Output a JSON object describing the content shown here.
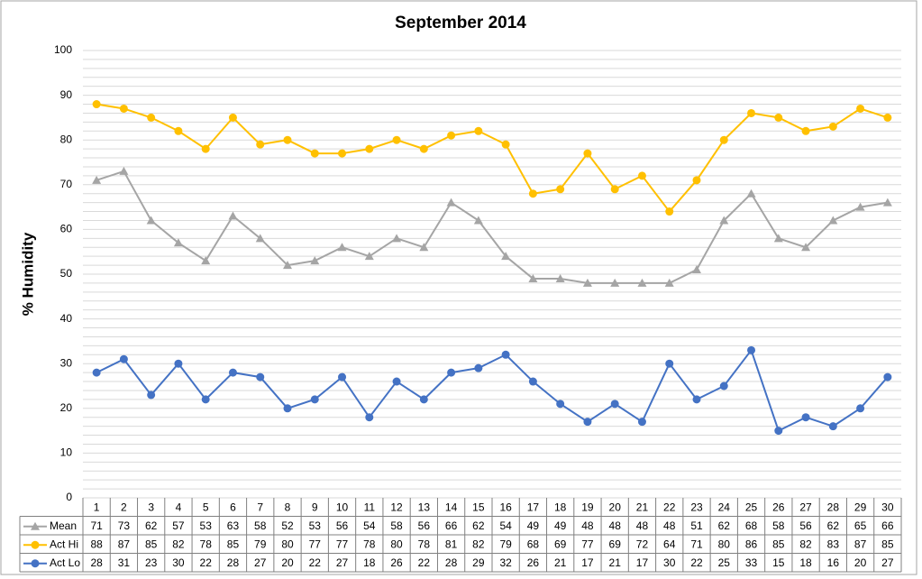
{
  "chart_data": {
    "type": "line",
    "title": "September 2014",
    "y_label": "% Humidity",
    "categories": [
      "1",
      "2",
      "3",
      "4",
      "5",
      "6",
      "7",
      "8",
      "9",
      "10",
      "11",
      "12",
      "13",
      "14",
      "15",
      "16",
      "17",
      "18",
      "19",
      "20",
      "21",
      "22",
      "23",
      "24",
      "25",
      "26",
      "27",
      "28",
      "29",
      "30"
    ],
    "series": [
      {
        "name": "Mean",
        "color": "#a5a5a5",
        "marker": "triangle",
        "values": [
          71,
          73,
          62,
          57,
          53,
          63,
          58,
          52,
          53,
          56,
          54,
          58,
          56,
          66,
          62,
          54,
          49,
          49,
          48,
          48,
          48,
          48,
          51,
          62,
          68,
          58,
          56,
          62,
          65,
          66
        ]
      },
      {
        "name": "Act Hi",
        "color": "#ffc000",
        "marker": "circle",
        "values": [
          88,
          87,
          85,
          82,
          78,
          85,
          79,
          80,
          77,
          77,
          78,
          80,
          78,
          81,
          82,
          79,
          68,
          69,
          77,
          69,
          72,
          64,
          71,
          80,
          86,
          85,
          82,
          83,
          87,
          85
        ]
      },
      {
        "name": "Act Lo",
        "color": "#4472c4",
        "marker": "circle",
        "values": [
          28,
          31,
          23,
          30,
          22,
          28,
          27,
          20,
          22,
          27,
          18,
          26,
          22,
          28,
          29,
          32,
          26,
          21,
          17,
          21,
          17,
          30,
          22,
          25,
          33,
          15,
          18,
          16,
          20,
          27
        ]
      }
    ],
    "ylim": [
      0,
      100
    ],
    "yticks": [
      0,
      10,
      20,
      30,
      40,
      50,
      60,
      70,
      80,
      90,
      100
    ],
    "grid": true,
    "minor_grid": true,
    "data_table": true
  }
}
